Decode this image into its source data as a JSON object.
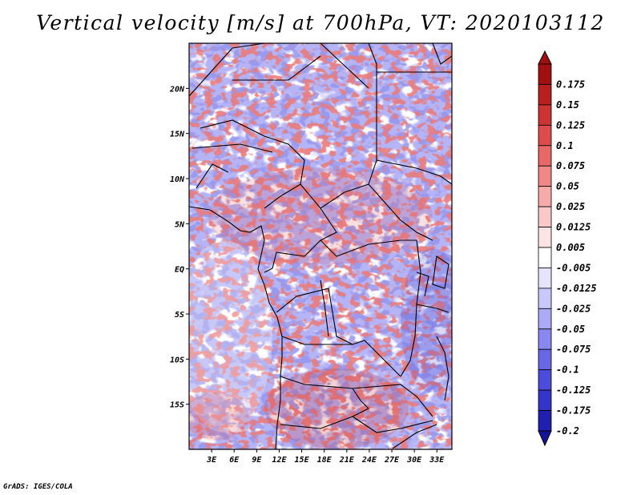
{
  "title": "Vertical velocity [m/s] at 700hPa, VT: 2020103112",
  "credit": "GrADS: IGES/COLA",
  "map": {
    "lon_range": [
      0,
      35
    ],
    "lat_range": [
      -20,
      25
    ],
    "lon_ticks": [
      {
        "value": 3,
        "label": "3E"
      },
      {
        "value": 6,
        "label": "6E"
      },
      {
        "value": 9,
        "label": "9E"
      },
      {
        "value": 12,
        "label": "12E"
      },
      {
        "value": 15,
        "label": "15E"
      },
      {
        "value": 18,
        "label": "18E"
      },
      {
        "value": 21,
        "label": "21E"
      },
      {
        "value": 24,
        "label": "24E"
      },
      {
        "value": 27,
        "label": "27E"
      },
      {
        "value": 30,
        "label": "30E"
      },
      {
        "value": 33,
        "label": "33E"
      }
    ],
    "lat_ticks": [
      {
        "value": 20,
        "label": "20N"
      },
      {
        "value": 15,
        "label": "15N"
      },
      {
        "value": 10,
        "label": "10N"
      },
      {
        "value": 5,
        "label": "5N"
      },
      {
        "value": 0,
        "label": "EQ"
      },
      {
        "value": -5,
        "label": "5S"
      },
      {
        "value": -10,
        "label": "10S"
      },
      {
        "value": -15,
        "label": "15S"
      }
    ]
  },
  "colorbar": {
    "levels": [
      {
        "label": "0.175",
        "color": "#a01010"
      },
      {
        "label": "0.15",
        "color": "#b82020"
      },
      {
        "label": "0.125",
        "color": "#cc3434"
      },
      {
        "label": "0.1",
        "color": "#dc4c4c"
      },
      {
        "label": "0.075",
        "color": "#e86868"
      },
      {
        "label": "0.05",
        "color": "#f08888"
      },
      {
        "label": "0.025",
        "color": "#f6aaaa"
      },
      {
        "label": "0.0125",
        "color": "#fac8c8"
      },
      {
        "label": "0.005",
        "color": "#fde4e4"
      },
      {
        "label": "-0.005",
        "color": "#ffffff"
      },
      {
        "label": "-0.0125",
        "color": "#e4e4fd"
      },
      {
        "label": "-0.025",
        "color": "#c8c8fa"
      },
      {
        "label": "-0.05",
        "color": "#aaaaf6"
      },
      {
        "label": "-0.075",
        "color": "#8888f0"
      },
      {
        "label": "-0.1",
        "color": "#6868e6"
      },
      {
        "label": "-0.125",
        "color": "#4c4cda"
      },
      {
        "label": "-0.175",
        "color": "#3434c8"
      },
      {
        "label": "-0.2",
        "color": "#2020b0"
      }
    ],
    "top_color": "#a01010",
    "bottom_color": "#14149a"
  }
}
